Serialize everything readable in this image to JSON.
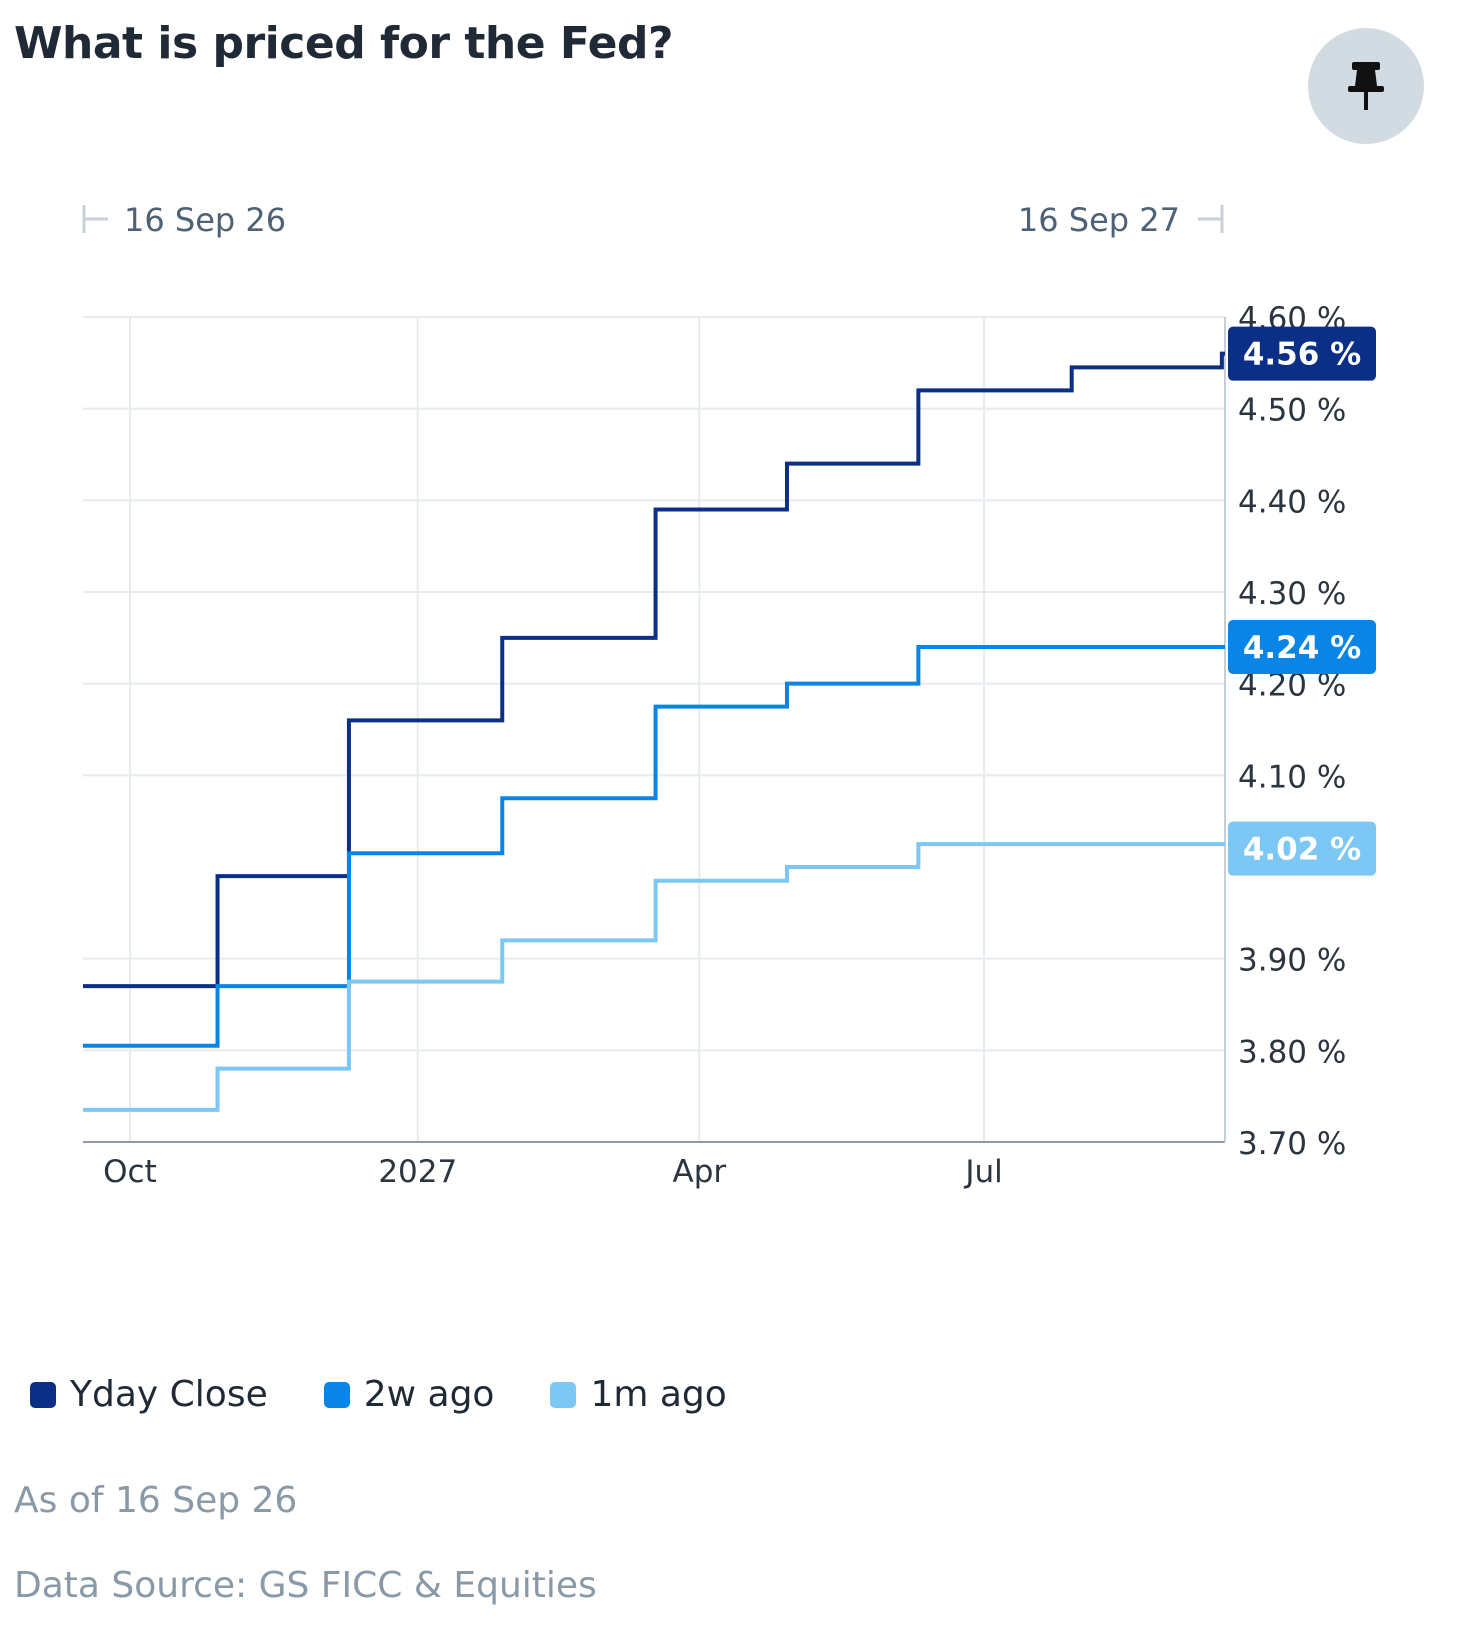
{
  "header": {
    "title": "What is priced for the Fed?",
    "pin_icon": "pin-icon"
  },
  "chart_data": {
    "type": "line",
    "step": true,
    "range_start_label": "16 Sep 26",
    "range_end_label": "16 Sep 27",
    "x_ticks": [
      {
        "label": "Oct",
        "date": "2026-10-01"
      },
      {
        "label": "2027",
        "date": "2027-01-01"
      },
      {
        "label": "Apr",
        "date": "2027-04-01"
      },
      {
        "label": "Jul",
        "date": "2027-07-01"
      }
    ],
    "x_range": [
      "2026-09-16",
      "2027-09-16"
    ],
    "y_ticks": [
      "3.70 %",
      "3.80 %",
      "3.90 %",
      "4.10 %",
      "4.20 %",
      "4.30 %",
      "4.40 %",
      "4.50 %",
      "4.60 %"
    ],
    "y_tick_values": [
      3.7,
      3.8,
      3.9,
      4.1,
      4.2,
      4.3,
      4.4,
      4.5,
      4.6
    ],
    "ylim": [
      3.7,
      4.6
    ],
    "grid": true,
    "legend_position": "bottom",
    "series": [
      {
        "name": "Yday Close",
        "color": "#0b2f86",
        "last_label": "4.56 %",
        "last_value": 4.56,
        "points": [
          {
            "date": "2026-09-16",
            "value": 3.87
          },
          {
            "date": "2026-10-29",
            "value": 3.99
          },
          {
            "date": "2026-12-10",
            "value": 4.16
          },
          {
            "date": "2027-01-28",
            "value": 4.25
          },
          {
            "date": "2027-03-18",
            "value": 4.39
          },
          {
            "date": "2027-04-29",
            "value": 4.44
          },
          {
            "date": "2027-06-10",
            "value": 4.52
          },
          {
            "date": "2027-07-29",
            "value": 4.545
          },
          {
            "date": "2027-09-15",
            "value": 4.56
          },
          {
            "date": "2027-09-16",
            "value": 4.56
          }
        ]
      },
      {
        "name": "2w ago",
        "color": "#0a85e6",
        "last_label": "4.24 %",
        "last_value": 4.24,
        "points": [
          {
            "date": "2026-09-16",
            "value": 3.805
          },
          {
            "date": "2026-10-29",
            "value": 3.87
          },
          {
            "date": "2026-12-10",
            "value": 4.015
          },
          {
            "date": "2027-01-28",
            "value": 4.075
          },
          {
            "date": "2027-03-18",
            "value": 4.175
          },
          {
            "date": "2027-04-29",
            "value": 4.2
          },
          {
            "date": "2027-06-10",
            "value": 4.24
          },
          {
            "date": "2027-09-16",
            "value": 4.24
          }
        ]
      },
      {
        "name": "1m ago",
        "color": "#7cc7f4",
        "last_label": "4.02 %",
        "last_value": 4.02,
        "points": [
          {
            "date": "2026-09-16",
            "value": 3.735
          },
          {
            "date": "2026-10-29",
            "value": 3.78
          },
          {
            "date": "2026-12-10",
            "value": 3.875
          },
          {
            "date": "2027-01-28",
            "value": 3.92
          },
          {
            "date": "2027-03-18",
            "value": 3.985
          },
          {
            "date": "2027-04-29",
            "value": 4.0
          },
          {
            "date": "2027-06-10",
            "value": 4.025
          },
          {
            "date": "2027-09-16",
            "value": 4.025
          }
        ]
      }
    ]
  },
  "legend": [
    {
      "label": "Yday Close",
      "color": "#0b2f86"
    },
    {
      "label": "2w ago",
      "color": "#0a85e6"
    },
    {
      "label": "1m ago",
      "color": "#7cc7f4"
    }
  ],
  "footer": {
    "as_of": "As of 16 Sep 26",
    "source": "Data Source: GS FICC & Equities"
  }
}
